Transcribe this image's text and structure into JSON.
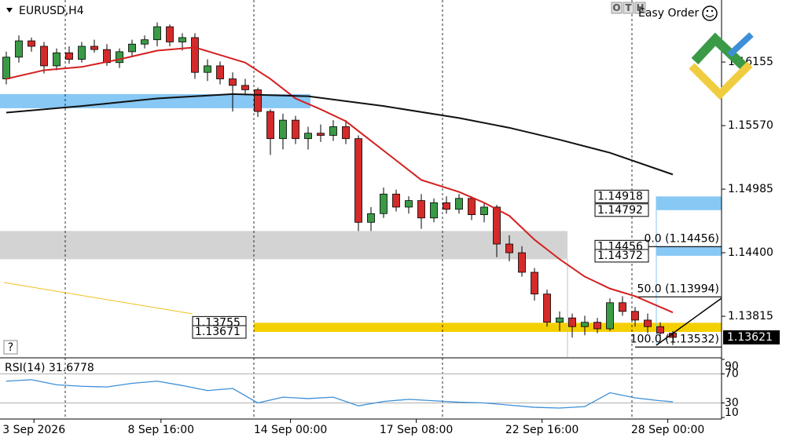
{
  "chart_data": {
    "type": "candlestick",
    "title": "EURUSD,H4",
    "toolbar": {
      "buttons": [
        "O",
        "T",
        "H"
      ],
      "label": "Easy Order"
    },
    "help": "?",
    "up_color": "#3a9a46",
    "down_color": "#d42a2a",
    "xlim": [
      -0.5,
      56.875
    ],
    "ylim": [
      1.1344,
      1.16726
    ],
    "xticks": [
      {
        "value": 2.2,
        "label": "3 Sep 2026"
      },
      {
        "value": 12.3,
        "label": "8 Sep 16:00"
      },
      {
        "value": 22.6,
        "label": "14 Sep 00:00"
      },
      {
        "value": 32.6,
        "label": "17 Sep 08:00"
      },
      {
        "value": 42.6,
        "label": "22 Sep 16:00"
      },
      {
        "value": 52.6,
        "label": "28 Sep 00:00"
      }
    ],
    "yticks": [
      1.16155,
      {
        "value": 1.1557,
        "label": "1.15570"
      },
      1.14985,
      {
        "value": 1.144,
        "label": "1.14400"
      },
      1.13815
    ],
    "current": 1.13621,
    "candles": {
      "open": [
        1.16,
        1.162,
        1.1635,
        1.163,
        1.1612,
        1.1624,
        1.1618,
        1.163,
        1.1627,
        1.1615,
        1.1625,
        1.1632,
        1.1636,
        1.1648,
        1.1634,
        1.1638,
        1.1606,
        1.1612,
        1.16,
        1.1594,
        1.159,
        1.157,
        1.1545,
        1.1562,
        1.1545,
        1.155,
        1.1548,
        1.1556,
        1.1545,
        1.1468,
        1.1476,
        1.1494,
        1.1482,
        1.1488,
        1.1472,
        1.1486,
        1.148,
        1.149,
        1.1475,
        1.1482,
        1.1448,
        1.144,
        1.1422,
        1.1402,
        1.1376,
        1.138,
        1.1372,
        1.1376,
        1.137,
        1.1394,
        1.1386,
        1.1378,
        1.1372,
        1.1366
      ],
      "high": [
        1.1625,
        1.164,
        1.1638,
        1.1634,
        1.1628,
        1.163,
        1.1634,
        1.1636,
        1.1632,
        1.1628,
        1.1636,
        1.164,
        1.1652,
        1.165,
        1.1642,
        1.1642,
        1.1618,
        1.1616,
        1.1606,
        1.16,
        1.1592,
        1.1572,
        1.1568,
        1.1566,
        1.1556,
        1.1558,
        1.1562,
        1.1562,
        1.1548,
        1.1482,
        1.15,
        1.1498,
        1.1492,
        1.1494,
        1.149,
        1.1492,
        1.1494,
        1.1492,
        1.1486,
        1.1484,
        1.1456,
        1.1446,
        1.1426,
        1.1406,
        1.1386,
        1.1384,
        1.1382,
        1.138,
        1.1398,
        1.14,
        1.139,
        1.1384,
        1.1376,
        1.1368
      ],
      "low": [
        1.1595,
        1.1615,
        1.1625,
        1.1605,
        1.1608,
        1.1614,
        1.1615,
        1.1624,
        1.1612,
        1.161,
        1.162,
        1.1628,
        1.163,
        1.163,
        1.1626,
        1.16,
        1.1598,
        1.1595,
        1.157,
        1.1585,
        1.1565,
        1.153,
        1.1535,
        1.154,
        1.1535,
        1.1542,
        1.1543,
        1.154,
        1.146,
        1.146,
        1.1472,
        1.1478,
        1.1476,
        1.1462,
        1.1468,
        1.1476,
        1.1476,
        1.147,
        1.1468,
        1.1436,
        1.1432,
        1.1418,
        1.1396,
        1.1372,
        1.1368,
        1.1362,
        1.1364,
        1.1366,
        1.1368,
        1.1382,
        1.1372,
        1.1366,
        1.136,
        1.1355
      ],
      "close": [
        1.162,
        1.1635,
        1.163,
        1.1612,
        1.1624,
        1.1618,
        1.163,
        1.1627,
        1.1615,
        1.1625,
        1.1632,
        1.1636,
        1.1648,
        1.1634,
        1.1638,
        1.1606,
        1.1612,
        1.16,
        1.1594,
        1.159,
        1.157,
        1.1545,
        1.1562,
        1.1545,
        1.155,
        1.1548,
        1.1556,
        1.1545,
        1.1468,
        1.1476,
        1.1494,
        1.1482,
        1.1488,
        1.1472,
        1.1486,
        1.148,
        1.149,
        1.1475,
        1.1482,
        1.1448,
        1.144,
        1.1422,
        1.1402,
        1.1376,
        1.138,
        1.1372,
        1.1376,
        1.137,
        1.1394,
        1.1386,
        1.1378,
        1.1372,
        1.1366,
        1.13621
      ]
    },
    "series": [
      {
        "color": "#d42020",
        "x": [
          0,
          3,
          6,
          9,
          12,
          15,
          17,
          19,
          21,
          23,
          25,
          27,
          29,
          31,
          33,
          36,
          38,
          40,
          42,
          44,
          46,
          48,
          50,
          53
        ],
        "values": [
          1.16,
          1.1608,
          1.1611,
          1.1618,
          1.1626,
          1.1629,
          1.1622,
          1.1615,
          1.16,
          1.1582,
          1.1572,
          1.1561,
          1.1543,
          1.1525,
          1.1507,
          1.1496,
          1.1486,
          1.1474,
          1.1452,
          1.1434,
          1.1418,
          1.1407,
          1.14,
          1.1385
        ]
      },
      {
        "color": "#111111",
        "x": [
          0,
          6,
          12,
          18,
          24,
          30,
          36,
          40,
          44,
          48,
          53
        ],
        "values": [
          1.1569,
          1.1575,
          1.1582,
          1.1586,
          1.1584,
          1.1575,
          1.1564,
          1.1555,
          1.1544,
          1.1532,
          1.1512
        ]
      }
    ],
    "zones": [
      {
        "high": 1.1586,
        "low": 1.1573,
        "color": "#87c8f5"
      },
      {
        "high": 1.146,
        "low": 1.1434,
        "color": "#d3d3d3"
      },
      {
        "high": 1.14918,
        "low": 1.14792,
        "color": "#87c8f5",
        "labels": true
      },
      {
        "high": 1.14456,
        "low": 1.14372,
        "color": "#87c8f5",
        "labels": true
      },
      {
        "high": 1.13755,
        "low": 1.13671,
        "color": "#f5d000",
        "labels": true
      }
    ],
    "fib": [
      {
        "price": 1.14456,
        "label": "0.0 (1.14456)"
      },
      {
        "price": 1.13994,
        "label": "50.0 (1.13994)"
      },
      {
        "price": 1.13532,
        "label": "100.0 (1.13532)"
      }
    ],
    "rsi": {
      "title": "RSI(14) 31.6778",
      "color": "#3d8fd6",
      "ylim": [
        10,
        90
      ],
      "yticks": [
        90,
        70,
        30,
        10
      ],
      "levels": [
        70,
        30
      ],
      "x": [
        0,
        2,
        4,
        6,
        8,
        10,
        12,
        14,
        16,
        18,
        20,
        22,
        24,
        26,
        28,
        30,
        32,
        34,
        36,
        38,
        40,
        42,
        44,
        46,
        48,
        50,
        52,
        53
      ],
      "values": [
        60,
        62,
        55,
        53,
        52,
        57,
        60,
        54,
        47,
        50,
        30,
        38,
        36,
        38,
        26,
        32,
        35,
        33,
        31,
        30,
        27,
        24,
        23,
        25,
        44,
        37,
        33,
        31.6778
      ]
    }
  }
}
